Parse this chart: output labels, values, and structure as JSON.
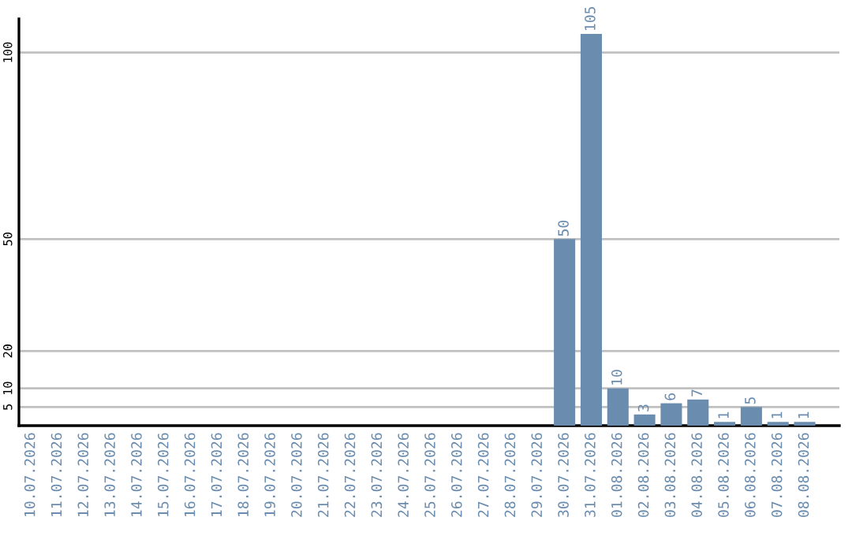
{
  "chart_data": {
    "type": "bar",
    "categories": [
      "10.07.2026",
      "11.07.2026",
      "12.07.2026",
      "13.07.2026",
      "14.07.2026",
      "15.07.2026",
      "16.07.2026",
      "17.07.2026",
      "18.07.2026",
      "19.07.2026",
      "20.07.2026",
      "21.07.2026",
      "22.07.2026",
      "23.07.2026",
      "24.07.2026",
      "25.07.2026",
      "26.07.2026",
      "27.07.2026",
      "28.07.2026",
      "29.07.2026",
      "30.07.2026",
      "31.07.2026",
      "01.08.2026",
      "02.08.2026",
      "03.08.2026",
      "04.08.2026",
      "05.08.2026",
      "06.08.2026",
      "07.08.2026",
      "08.08.2026"
    ],
    "values": [
      0,
      0,
      0,
      0,
      0,
      0,
      0,
      0,
      0,
      0,
      0,
      0,
      0,
      0,
      0,
      0,
      0,
      0,
      0,
      0,
      50,
      105,
      10,
      3,
      6,
      7,
      1,
      5,
      1,
      1
    ],
    "value_labels": [
      null,
      null,
      null,
      null,
      null,
      null,
      null,
      null,
      null,
      null,
      null,
      null,
      null,
      null,
      null,
      null,
      null,
      null,
      null,
      null,
      "50",
      "105",
      "10",
      "3",
      "6",
      "7",
      "1",
      "5",
      "1",
      "1"
    ],
    "color": "#6a8caf",
    "ylim": [
      0,
      109
    ],
    "yticks": [
      5,
      10,
      20,
      50,
      100
    ],
    "grid": "y"
  }
}
